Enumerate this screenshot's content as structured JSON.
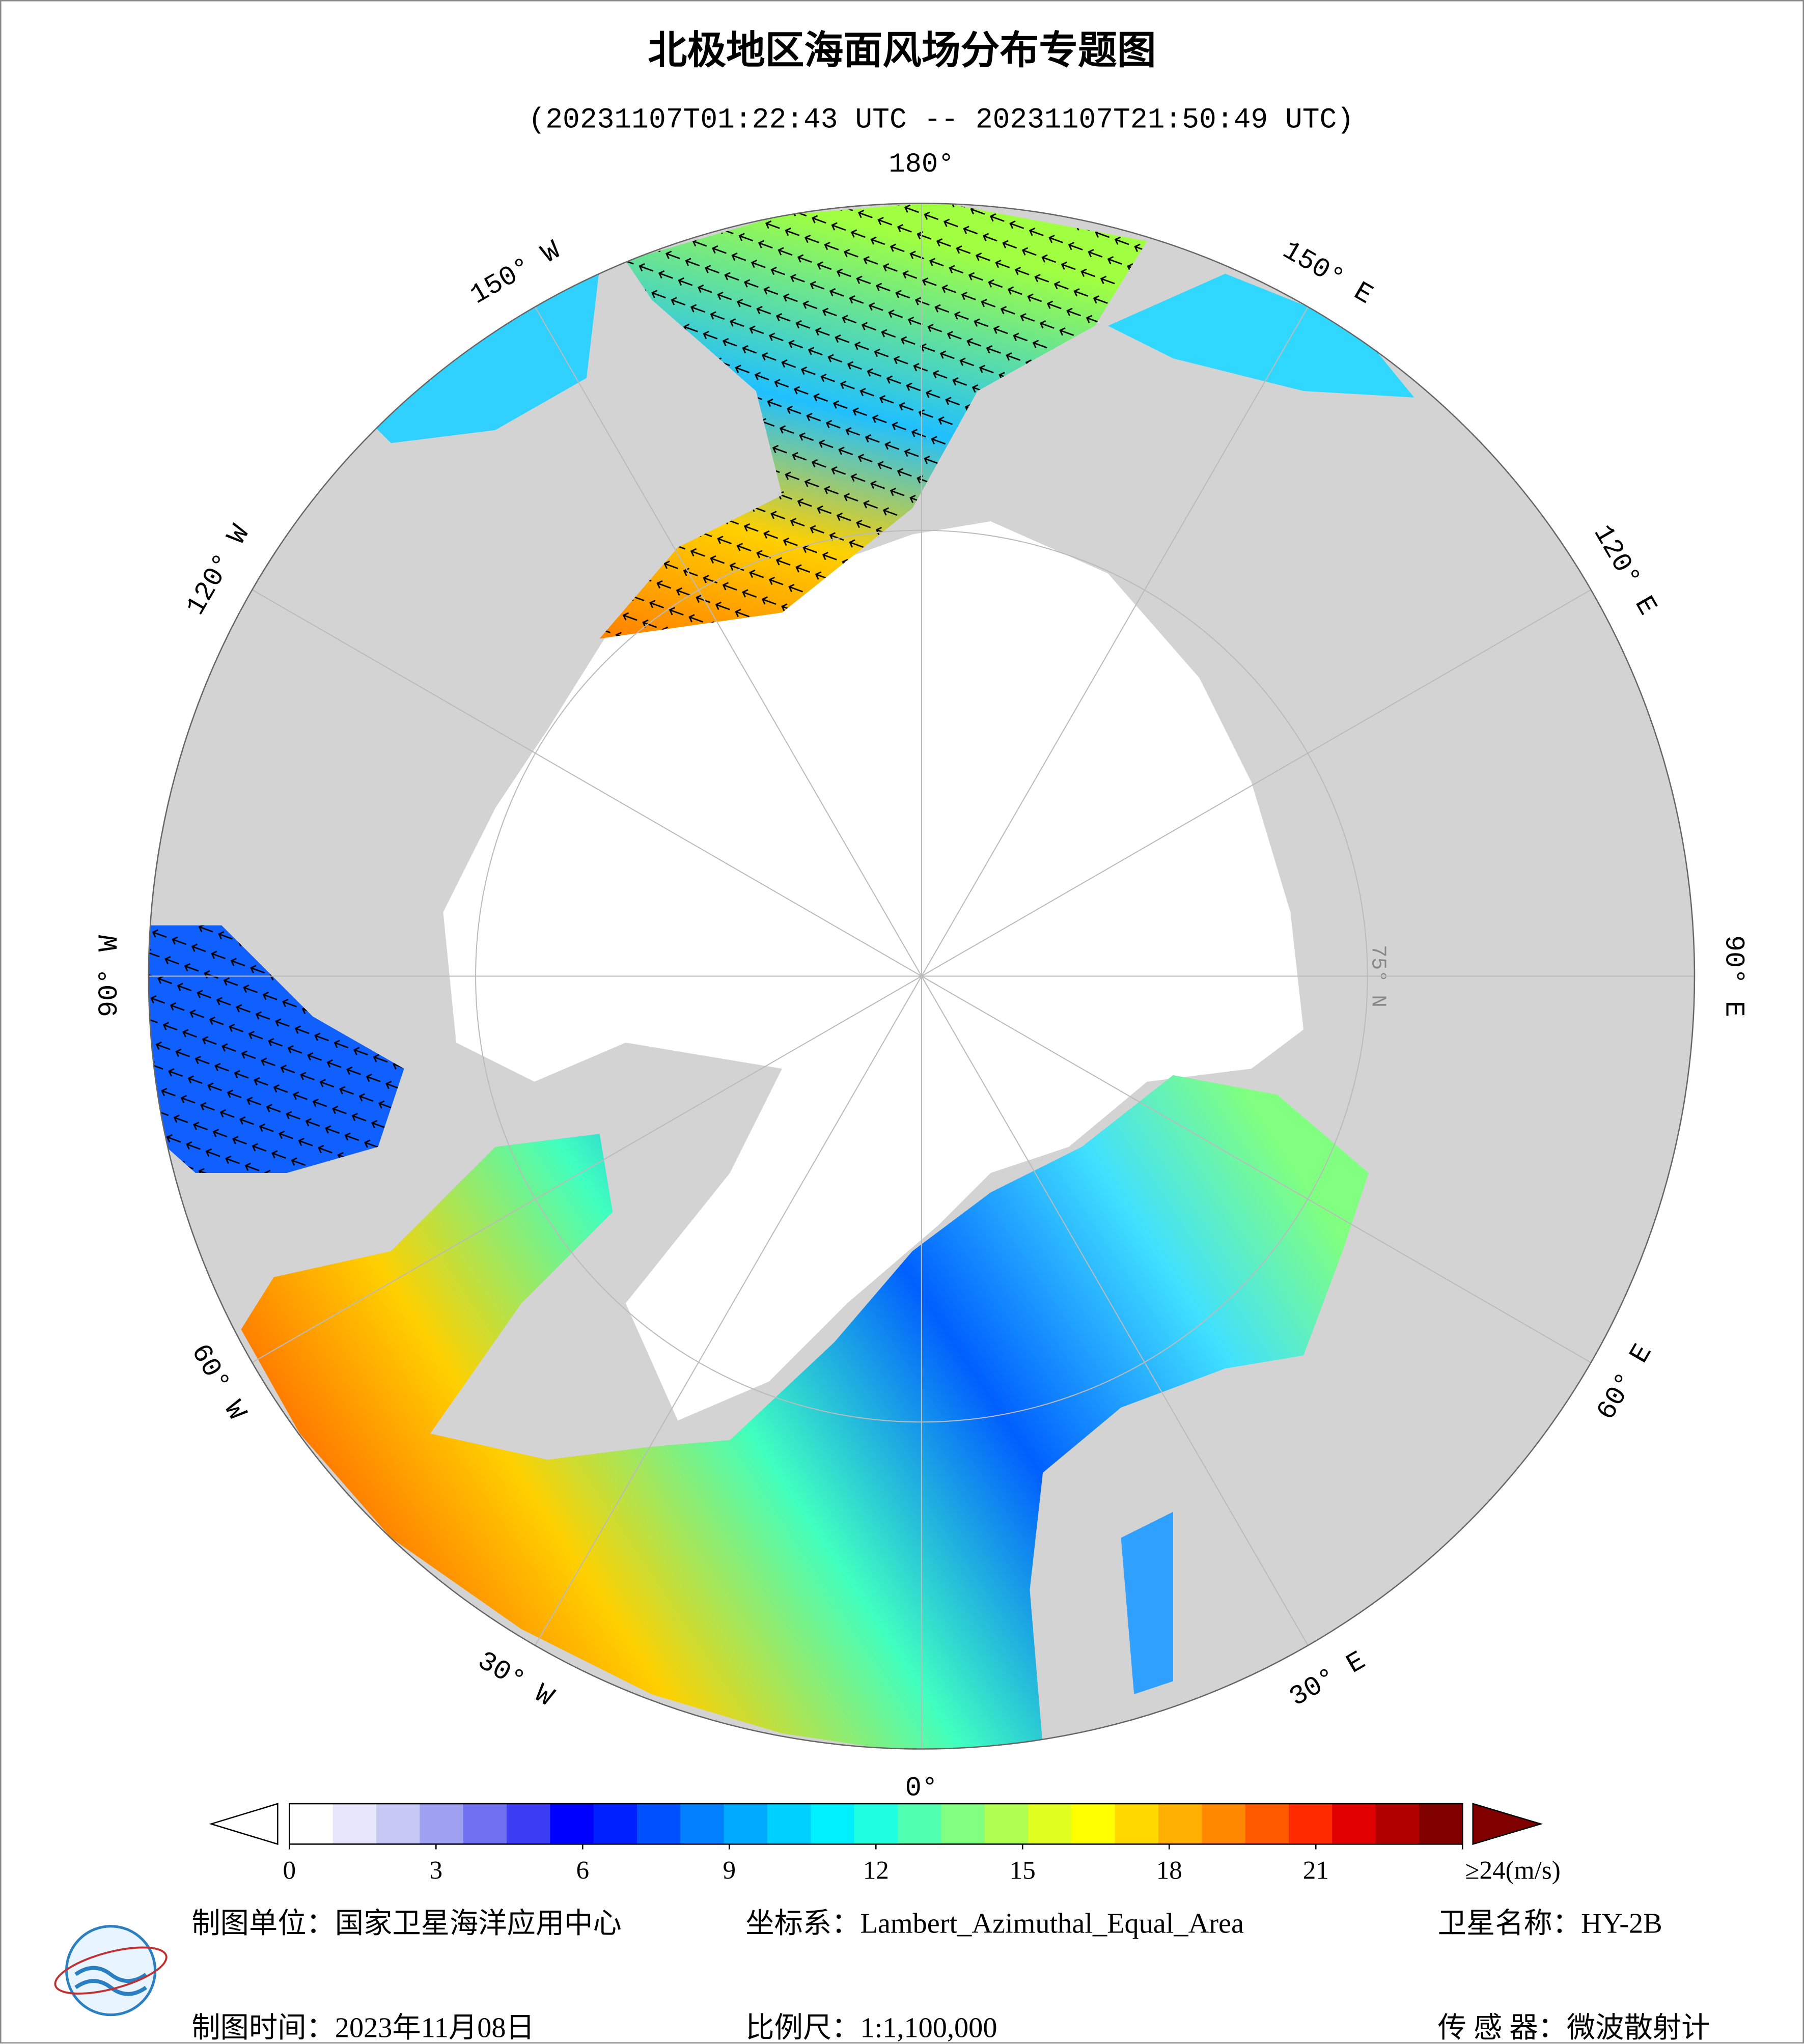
{
  "header": {
    "title": "北极地区海面风场分布专题图",
    "subtitle": "(20231107T01:22:43 UTC -- 20231107T21:50:49 UTC)"
  },
  "map": {
    "meridians": [
      {
        "value": 180,
        "label": "180°"
      },
      {
        "value": 150,
        "label": "150° E"
      },
      {
        "value": 120,
        "label": "120° E"
      },
      {
        "value": 90,
        "label": "90° E"
      },
      {
        "value": 60,
        "label": "60° E"
      },
      {
        "value": 30,
        "label": "30° E"
      },
      {
        "value": 0,
        "label": "0°"
      },
      {
        "value": -30,
        "label": "30° W"
      },
      {
        "value": -60,
        "label": "60° W"
      },
      {
        "value": -90,
        "label": "90° W"
      },
      {
        "value": -120,
        "label": "120° W"
      },
      {
        "value": -150,
        "label": "150° W"
      }
    ],
    "parallel": {
      "value": 75,
      "label": "75° N"
    }
  },
  "colorbar": {
    "range": [
      0,
      24
    ],
    "ticks": [
      0,
      3,
      6,
      9,
      12,
      15,
      18,
      21,
      {
        "value": 24,
        "label": "≥24(m/s)"
      }
    ],
    "colors": [
      "#ffffff",
      "#e6e6fa",
      "#c8c8f5",
      "#a0a0f0",
      "#7070f0",
      "#3c3cf5",
      "#0000ff",
      "#0020ff",
      "#0050ff",
      "#0080ff",
      "#00aaff",
      "#00d0ff",
      "#00f0ff",
      "#20ffe0",
      "#50ffb0",
      "#80ff80",
      "#b0ff50",
      "#e0ff20",
      "#ffff00",
      "#ffd800",
      "#ffb000",
      "#ff8800",
      "#ff5a00",
      "#ff2a00",
      "#e00000",
      "#b00000",
      "#800000"
    ]
  },
  "footer": {
    "unit": "制图单位：国家卫星海洋应用中心",
    "crs": "坐标系：Lambert_Azimuthal_Equal_Area",
    "satellite": "卫星名称：HY-2B",
    "date": "制图时间：2023年11月08日",
    "scale": "比例尺：1:1,100,000",
    "sensor": "传 感 器：微波散射计"
  }
}
